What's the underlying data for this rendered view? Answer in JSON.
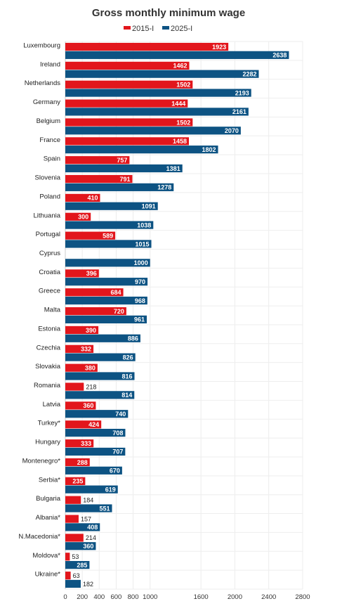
{
  "chart_data": {
    "type": "bar",
    "orientation": "horizontal",
    "title": "Gross monthly minimum wage",
    "xlabel": "",
    "ylabel": "",
    "xlim": [
      0,
      2800
    ],
    "ticks": [
      "0",
      "200",
      "400",
      "600",
      "800",
      "1000",
      "1600",
      "2000",
      "2400",
      "2800"
    ],
    "legend": "top-center",
    "grid": true,
    "categories": [
      "Luxembourg",
      "Ireland",
      "Netherlands",
      "Germany",
      "Belgium",
      "France",
      "Spain",
      "Slovenia",
      "Poland",
      "Lithuania",
      "Portugal",
      "Cyprus",
      "Croatia",
      "Greece",
      "Malta",
      "Estonia",
      "Czechia",
      "Slovakia",
      "Romania",
      "Latvia",
      "Turkey*",
      "Hungary",
      "Montenegro*",
      "Serbia*",
      "Bulgaria",
      "Albania*",
      "N.Macedonia*",
      "Moldova*",
      "Ukraine*"
    ],
    "series": [
      {
        "name": "2015-I",
        "color": "#e2161c",
        "values": [
          1923,
          1462,
          1502,
          1444,
          1502,
          1458,
          757,
          791,
          410,
          300,
          589,
          null,
          396,
          684,
          720,
          390,
          332,
          380,
          218,
          360,
          424,
          333,
          288,
          235,
          184,
          157,
          214,
          53,
          63
        ]
      },
      {
        "name": "2025-I",
        "color": "#0d5383",
        "values": [
          2638,
          2282,
          2193,
          2161,
          2070,
          1802,
          1381,
          1278,
          1091,
          1038,
          1015,
          1000,
          970,
          968,
          961,
          886,
          826,
          816,
          814,
          740,
          708,
          707,
          670,
          619,
          551,
          408,
          360,
          285,
          182
        ]
      }
    ]
  }
}
